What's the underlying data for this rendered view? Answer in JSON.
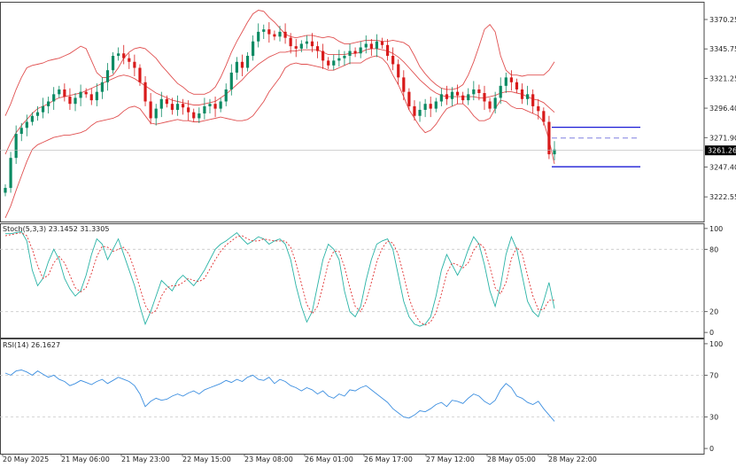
{
  "colors": {
    "bull": "#0b8a63",
    "bear": "#d81b1b",
    "bollinger": "#e05050",
    "stoch_main": "#2ab3a6",
    "stoch_signal": "#e03030",
    "rsi": "#3d8fe0",
    "level_line": "#1b1bd6",
    "grid_dashed": "#c8c8c8",
    "frame": "#444444"
  },
  "chart_data": [
    {
      "type": "candlestick",
      "panel": "price",
      "y_ticks": [
        "3370.25",
        "3345.75",
        "3321.25",
        "3296.40",
        "3271.90",
        "3247.40",
        "3222.55"
      ],
      "ylim": [
        3202,
        3385
      ],
      "current_price_label": "3261.26",
      "current_price": 3261.26,
      "x_labels": [
        "20 May 2025",
        "21 May 06:00",
        "21 May 23:00",
        "22 May 15:00",
        "23 May 08:00",
        "26 May 01:00",
        "26 May 17:00",
        "27 May 12:00",
        "28 May 05:00",
        "28 May 22:00"
      ],
      "close_series": [
        3230,
        3255,
        3275,
        3280,
        3285,
        3290,
        3293,
        3298,
        3302,
        3308,
        3312,
        3306,
        3300,
        3305,
        3310,
        3308,
        3303,
        3310,
        3318,
        3328,
        3340,
        3342,
        3338,
        3335,
        3330,
        3318,
        3302,
        3288,
        3296,
        3304,
        3300,
        3295,
        3300,
        3297,
        3293,
        3288,
        3292,
        3298,
        3300,
        3296,
        3302,
        3312,
        3326,
        3335,
        3330,
        3340,
        3352,
        3360,
        3362,
        3358,
        3356,
        3360,
        3355,
        3348,
        3346,
        3350,
        3352,
        3348,
        3344,
        3336,
        3332,
        3336,
        3338,
        3340,
        3344,
        3342,
        3347,
        3350,
        3346,
        3352,
        3349,
        3340,
        3333,
        3322,
        3310,
        3298,
        3290,
        3295,
        3300,
        3296,
        3302,
        3308,
        3304,
        3310,
        3307,
        3303,
        3308,
        3312,
        3309,
        3302,
        3296,
        3305,
        3315,
        3322,
        3318,
        3312,
        3304,
        3308,
        3298,
        3294,
        3285,
        3258,
        3262
      ],
      "bollinger": {
        "upper": [
          3290,
          3300,
          3312,
          3322,
          3330,
          3332,
          3333,
          3334,
          3336,
          3337,
          3338,
          3340,
          3342,
          3345,
          3348,
          3346,
          3336,
          3326,
          3322,
          3322,
          3324,
          3330,
          3338,
          3343,
          3346,
          3347,
          3346,
          3342,
          3338,
          3332,
          3327,
          3322,
          3317,
          3314,
          3310,
          3308,
          3308,
          3308,
          3310,
          3314,
          3322,
          3332,
          3343,
          3352,
          3360,
          3368,
          3375,
          3378,
          3377,
          3372,
          3368,
          3363,
          3358,
          3356,
          3355,
          3356,
          3357,
          3357,
          3356,
          3355,
          3356,
          3355,
          3352,
          3350,
          3350,
          3351,
          3352,
          3353,
          3353,
          3353,
          3352,
          3352,
          3353,
          3352,
          3351,
          3348,
          3340,
          3331,
          3325,
          3320,
          3316,
          3313,
          3312,
          3312,
          3313,
          3316,
          3324,
          3335,
          3348,
          3362,
          3366,
          3360,
          3340,
          3328,
          3324,
          3324,
          3323,
          3324,
          3324,
          3324,
          3324,
          3328,
          3335
        ],
        "mid": [
          3258,
          3268,
          3276,
          3282,
          3287,
          3292,
          3296,
          3298,
          3300,
          3303,
          3305,
          3306,
          3307,
          3308,
          3309,
          3311,
          3313,
          3315,
          3317,
          3319,
          3321,
          3323,
          3324,
          3323,
          3321,
          3318,
          3315,
          3312,
          3309,
          3307,
          3305,
          3303,
          3302,
          3301,
          3300,
          3299,
          3299,
          3300,
          3301,
          3302,
          3305,
          3308,
          3312,
          3316,
          3320,
          3325,
          3329,
          3333,
          3336,
          3339,
          3341,
          3343,
          3343,
          3344,
          3344,
          3345,
          3345,
          3345,
          3345,
          3343,
          3341,
          3341,
          3341,
          3341,
          3342,
          3342,
          3343,
          3345,
          3346,
          3346,
          3345,
          3344,
          3342,
          3339,
          3335,
          3330,
          3325,
          3320,
          3316,
          3312,
          3309,
          3307,
          3306,
          3306,
          3306,
          3306,
          3306,
          3306,
          3305,
          3305,
          3306,
          3307,
          3309,
          3310,
          3310,
          3309,
          3308,
          3306,
          3304,
          3303,
          3301,
          3297,
          3293
        ],
        "lower": [
          3205,
          3215,
          3228,
          3240,
          3252,
          3262,
          3266,
          3268,
          3270,
          3272,
          3273,
          3274,
          3274,
          3275,
          3276,
          3278,
          3282,
          3285,
          3286,
          3287,
          3288,
          3290,
          3294,
          3297,
          3298,
          3296,
          3290,
          3284,
          3283,
          3284,
          3285,
          3286,
          3287,
          3286,
          3286,
          3285,
          3285,
          3286,
          3287,
          3288,
          3289,
          3288,
          3287,
          3286,
          3286,
          3287,
          3290,
          3296,
          3302,
          3310,
          3316,
          3322,
          3330,
          3333,
          3334,
          3333,
          3333,
          3332,
          3331,
          3330,
          3328,
          3328,
          3330,
          3332,
          3334,
          3334,
          3334,
          3337,
          3339,
          3340,
          3338,
          3333,
          3324,
          3316,
          3306,
          3295,
          3288,
          3281,
          3276,
          3278,
          3283,
          3290,
          3296,
          3298,
          3300,
          3300,
          3296,
          3290,
          3286,
          3286,
          3288,
          3296,
          3303,
          3302,
          3298,
          3296,
          3296,
          3294,
          3292,
          3290,
          3285,
          3270,
          3250
        ]
      },
      "levels": [
        {
          "price": 3280.5,
          "style": "solid"
        },
        {
          "price": 3271.5,
          "style": "dashed"
        },
        {
          "price": 3247.6,
          "style": "solid"
        }
      ]
    },
    {
      "type": "line",
      "panel": "stochastic",
      "label": "Stoch(5,3,3) 23.1452 31.3305",
      "y_ticks": [
        "100",
        "80",
        "20",
        "0"
      ],
      "levels_dashed": [
        80,
        20
      ],
      "ylim": [
        -5,
        105
      ],
      "series": [
        {
          "role": "main",
          "values": [
            95,
            95,
            96,
            97,
            88,
            60,
            45,
            52,
            68,
            80,
            70,
            52,
            42,
            35,
            40,
            55,
            75,
            90,
            85,
            70,
            80,
            90,
            75,
            60,
            45,
            25,
            8,
            20,
            35,
            50,
            45,
            40,
            50,
            55,
            50,
            45,
            52,
            60,
            70,
            80,
            85,
            88,
            92,
            96,
            90,
            85,
            88,
            92,
            90,
            85,
            88,
            90,
            85,
            70,
            45,
            25,
            10,
            20,
            45,
            70,
            85,
            80,
            70,
            40,
            20,
            15,
            25,
            50,
            70,
            85,
            88,
            90,
            80,
            55,
            30,
            15,
            8,
            6,
            8,
            15,
            35,
            60,
            75,
            65,
            55,
            65,
            80,
            92,
            85,
            65,
            40,
            25,
            45,
            75,
            92,
            80,
            55,
            30,
            20,
            15,
            30,
            48,
            23
          ]
        },
        {
          "role": "signal",
          "values": [
            93,
            94,
            95,
            96,
            93,
            80,
            64,
            52,
            55,
            67,
            73,
            67,
            55,
            43,
            39,
            43,
            57,
            73,
            83,
            82,
            78,
            80,
            82,
            75,
            60,
            43,
            26,
            18,
            21,
            35,
            43,
            45,
            45,
            48,
            52,
            50,
            49,
            52,
            61,
            70,
            78,
            84,
            88,
            92,
            93,
            90,
            88,
            88,
            90,
            89,
            88,
            88,
            88,
            82,
            67,
            47,
            27,
            18,
            25,
            45,
            67,
            78,
            78,
            63,
            43,
            25,
            20,
            30,
            48,
            68,
            81,
            88,
            86,
            75,
            55,
            33,
            18,
            10,
            7,
            10,
            19,
            37,
            57,
            67,
            65,
            62,
            67,
            79,
            86,
            81,
            63,
            43,
            37,
            48,
            71,
            82,
            76,
            55,
            35,
            22,
            22,
            31,
            31
          ]
        }
      ]
    },
    {
      "type": "line",
      "panel": "rsi",
      "label": "RSI(14) 26.1627",
      "y_ticks": [
        "100",
        "70",
        "30",
        "0"
      ],
      "levels_dashed": [
        70,
        30
      ],
      "ylim": [
        -5,
        105
      ],
      "values": [
        72,
        70,
        74,
        75,
        73,
        70,
        74,
        71,
        68,
        70,
        66,
        64,
        60,
        62,
        65,
        63,
        61,
        64,
        66,
        62,
        65,
        68,
        66,
        64,
        60,
        52,
        40,
        45,
        48,
        46,
        47,
        50,
        52,
        50,
        53,
        55,
        52,
        56,
        58,
        60,
        62,
        65,
        63,
        66,
        64,
        68,
        70,
        66,
        65,
        68,
        62,
        66,
        64,
        60,
        58,
        55,
        58,
        56,
        52,
        55,
        50,
        48,
        52,
        50,
        56,
        55,
        58,
        60,
        56,
        52,
        48,
        44,
        38,
        34,
        30,
        29,
        32,
        36,
        35,
        38,
        42,
        44,
        40,
        46,
        45,
        43,
        48,
        52,
        50,
        45,
        42,
        46,
        56,
        62,
        58,
        50,
        48,
        44,
        42,
        45,
        38,
        32,
        26
      ]
    }
  ]
}
